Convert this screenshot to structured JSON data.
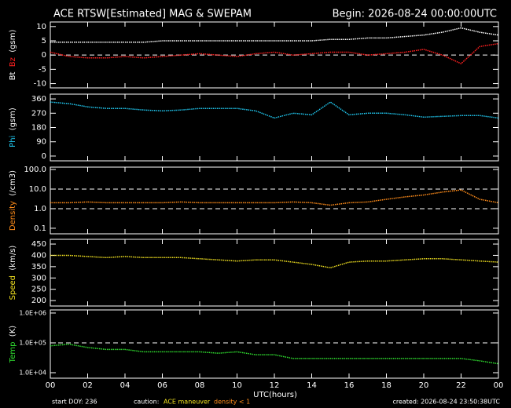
{
  "title": "ACE RTSW[Estimated] MAG & SWEPAM",
  "begin": "Begin: 2026-08-24 00:00:00UTC",
  "x_label": "UTC(hours)",
  "footer": {
    "start": "start DOY: 236",
    "caution": "caution:",
    "maneuver": "ACE maneuver",
    "density": "density < 1",
    "created": "created: 2026-08-24 23:50:38UTC"
  },
  "chart_data": [
    {
      "type": "line",
      "unit": "(gsm)",
      "xlim": [
        0,
        24
      ],
      "ylim": [
        -11.5,
        11.6
      ],
      "yticks": [
        -10,
        -5,
        0,
        5,
        10
      ],
      "ref_lines": [
        0
      ],
      "x": [
        0,
        1,
        2,
        3,
        4,
        5,
        6,
        7,
        8,
        9,
        10,
        11,
        12,
        13,
        14,
        15,
        16,
        17,
        18,
        19,
        20,
        21,
        22,
        23,
        24
      ],
      "series": [
        {
          "name": "Bt",
          "color": "#ffffff",
          "values": [
            4.5,
            4.5,
            4.5,
            4.5,
            4.5,
            4.5,
            5,
            5,
            5,
            5,
            5,
            5,
            5,
            5,
            5,
            5.5,
            5.5,
            6,
            6,
            6.5,
            7,
            8,
            9.5,
            8,
            7
          ]
        },
        {
          "name": "Bz",
          "color": "#ff2020",
          "values": [
            1,
            -0.5,
            -1,
            -1,
            -0.5,
            -1,
            -0.5,
            0,
            0.5,
            0,
            -0.5,
            0.5,
            1,
            0,
            0.5,
            1,
            1,
            0,
            0.5,
            1,
            2,
            0,
            -3,
            3,
            4
          ]
        }
      ]
    },
    {
      "type": "line",
      "unit": "(gsm)",
      "xlim": [
        0,
        24
      ],
      "ylim": [
        -30,
        390
      ],
      "yticks": [
        0,
        90,
        180,
        270,
        360
      ],
      "x": [
        0,
        1,
        2,
        3,
        4,
        5,
        6,
        7,
        8,
        9,
        10,
        11,
        12,
        13,
        14,
        15,
        16,
        17,
        18,
        19,
        20,
        21,
        22,
        23,
        24
      ],
      "series": [
        {
          "name": "Phi",
          "color": "#20c8f0",
          "values": [
            340,
            330,
            310,
            300,
            300,
            290,
            285,
            290,
            300,
            300,
            300,
            285,
            240,
            270,
            260,
            340,
            260,
            270,
            270,
            260,
            245,
            250,
            255,
            255,
            240
          ]
        }
      ]
    },
    {
      "type": "line",
      "unit": "(/cm3)",
      "log": true,
      "xlim": [
        0,
        24
      ],
      "ylim": [
        0.052,
        132
      ],
      "yticks": [
        0.1,
        {
          "value": 1,
          "label": "1.0"
        },
        {
          "value": 10,
          "label": "10.0"
        },
        {
          "value": 100,
          "label": "100.0"
        }
      ],
      "ref_lines": [
        1,
        10
      ],
      "x": [
        0,
        1,
        2,
        3,
        4,
        5,
        6,
        7,
        8,
        9,
        10,
        11,
        12,
        13,
        14,
        15,
        16,
        17,
        18,
        19,
        20,
        21,
        22,
        23,
        24
      ],
      "series": [
        {
          "name": "Density",
          "color": "#ff8c1a",
          "values": [
            2,
            2,
            2.2,
            2,
            2,
            2,
            2,
            2.2,
            2,
            2,
            2,
            2,
            2,
            2.2,
            2,
            1.5,
            2,
            2.2,
            3,
            4,
            5,
            7,
            9,
            3,
            2
          ]
        }
      ]
    },
    {
      "type": "line",
      "unit": "(km/s)",
      "xlim": [
        0,
        24
      ],
      "ylim": [
        176,
        471
      ],
      "yticks": [
        200,
        250,
        300,
        350,
        400,
        450
      ],
      "x": [
        0,
        1,
        2,
        3,
        4,
        5,
        6,
        7,
        8,
        9,
        10,
        11,
        12,
        13,
        14,
        15,
        16,
        17,
        18,
        19,
        20,
        21,
        22,
        23,
        24
      ],
      "series": [
        {
          "name": "Speed",
          "color": "#f0e020",
          "values": [
            400,
            400,
            395,
            390,
            395,
            390,
            390,
            390,
            385,
            380,
            375,
            380,
            380,
            370,
            360,
            345,
            370,
            375,
            375,
            380,
            385,
            385,
            380,
            375,
            370
          ]
        }
      ]
    },
    {
      "type": "line",
      "unit": "(K)",
      "log": true,
      "xlim": [
        0,
        24
      ],
      "ylim": [
        6550,
        1270000
      ],
      "yticks": [
        {
          "value": 10000,
          "label": "1.0E+04"
        },
        {
          "value": 100000,
          "label": "1.0E+05"
        },
        {
          "value": 1000000,
          "label": "1.0E+06"
        }
      ],
      "ref_lines": [
        100000
      ],
      "xticks": [
        {
          "value": 0,
          "label": "00"
        },
        {
          "value": 2,
          "label": "02"
        },
        {
          "value": 4,
          "label": "04"
        },
        {
          "value": 6,
          "label": "06"
        },
        {
          "value": 8,
          "label": "08"
        },
        10,
        12,
        14,
        16,
        18,
        20,
        22,
        {
          "value": 24,
          "label": "00"
        }
      ],
      "x": [
        0,
        1,
        2,
        3,
        4,
        5,
        6,
        7,
        8,
        9,
        10,
        11,
        12,
        13,
        14,
        15,
        16,
        17,
        18,
        19,
        20,
        21,
        22,
        23,
        24
      ],
      "series": [
        {
          "name": "Temp",
          "color": "#30e030",
          "values": [
            80000,
            90000,
            70000,
            60000,
            60000,
            50000,
            50000,
            50000,
            50000,
            45000,
            50000,
            40000,
            40000,
            30000,
            30000,
            30000,
            30000,
            30000,
            30000,
            30000,
            30000,
            30000,
            30000,
            25000,
            20000
          ]
        }
      ]
    }
  ]
}
